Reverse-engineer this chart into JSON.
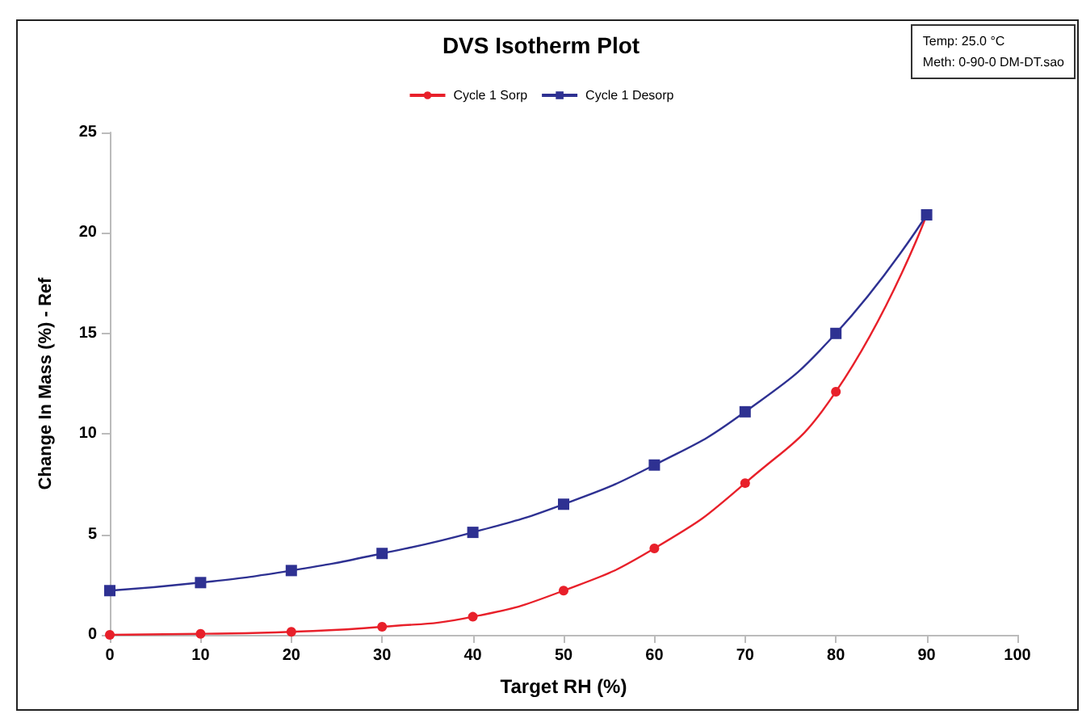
{
  "chart_data": {
    "type": "line",
    "title": "DVS Isotherm Plot",
    "xlabel": "Target RH (%)",
    "ylabel": "Change In Mass (%) - Ref",
    "annotations": [
      "Temp:  25.0 °C",
      "Meth:  0-90-0 DM-DT.sao"
    ],
    "x": [
      0,
      10,
      20,
      30,
      40,
      50,
      60,
      70,
      80,
      90
    ],
    "series": [
      {
        "name": "Cycle 1 Sorp",
        "color": "#e8202a",
        "marker": "circle",
        "values": [
          0,
          0.05,
          0.15,
          0.4,
          0.9,
          2.2,
          4.3,
          7.55,
          12.1,
          20.9
        ]
      },
      {
        "name": "Cycle 1 Desorp",
        "color": "#2e3192",
        "marker": "square",
        "values": [
          2.2,
          2.6,
          3.2,
          4.05,
          5.1,
          6.5,
          8.45,
          11.1,
          15.0,
          20.9
        ]
      }
    ],
    "xlim": [
      0,
      100
    ],
    "xticks": [
      0,
      10,
      20,
      30,
      40,
      50,
      60,
      70,
      80,
      90,
      100
    ],
    "ylim": [
      0,
      25
    ],
    "yticks": [
      0,
      5,
      10,
      15,
      20,
      25
    ],
    "grid": false,
    "legend": "top"
  }
}
